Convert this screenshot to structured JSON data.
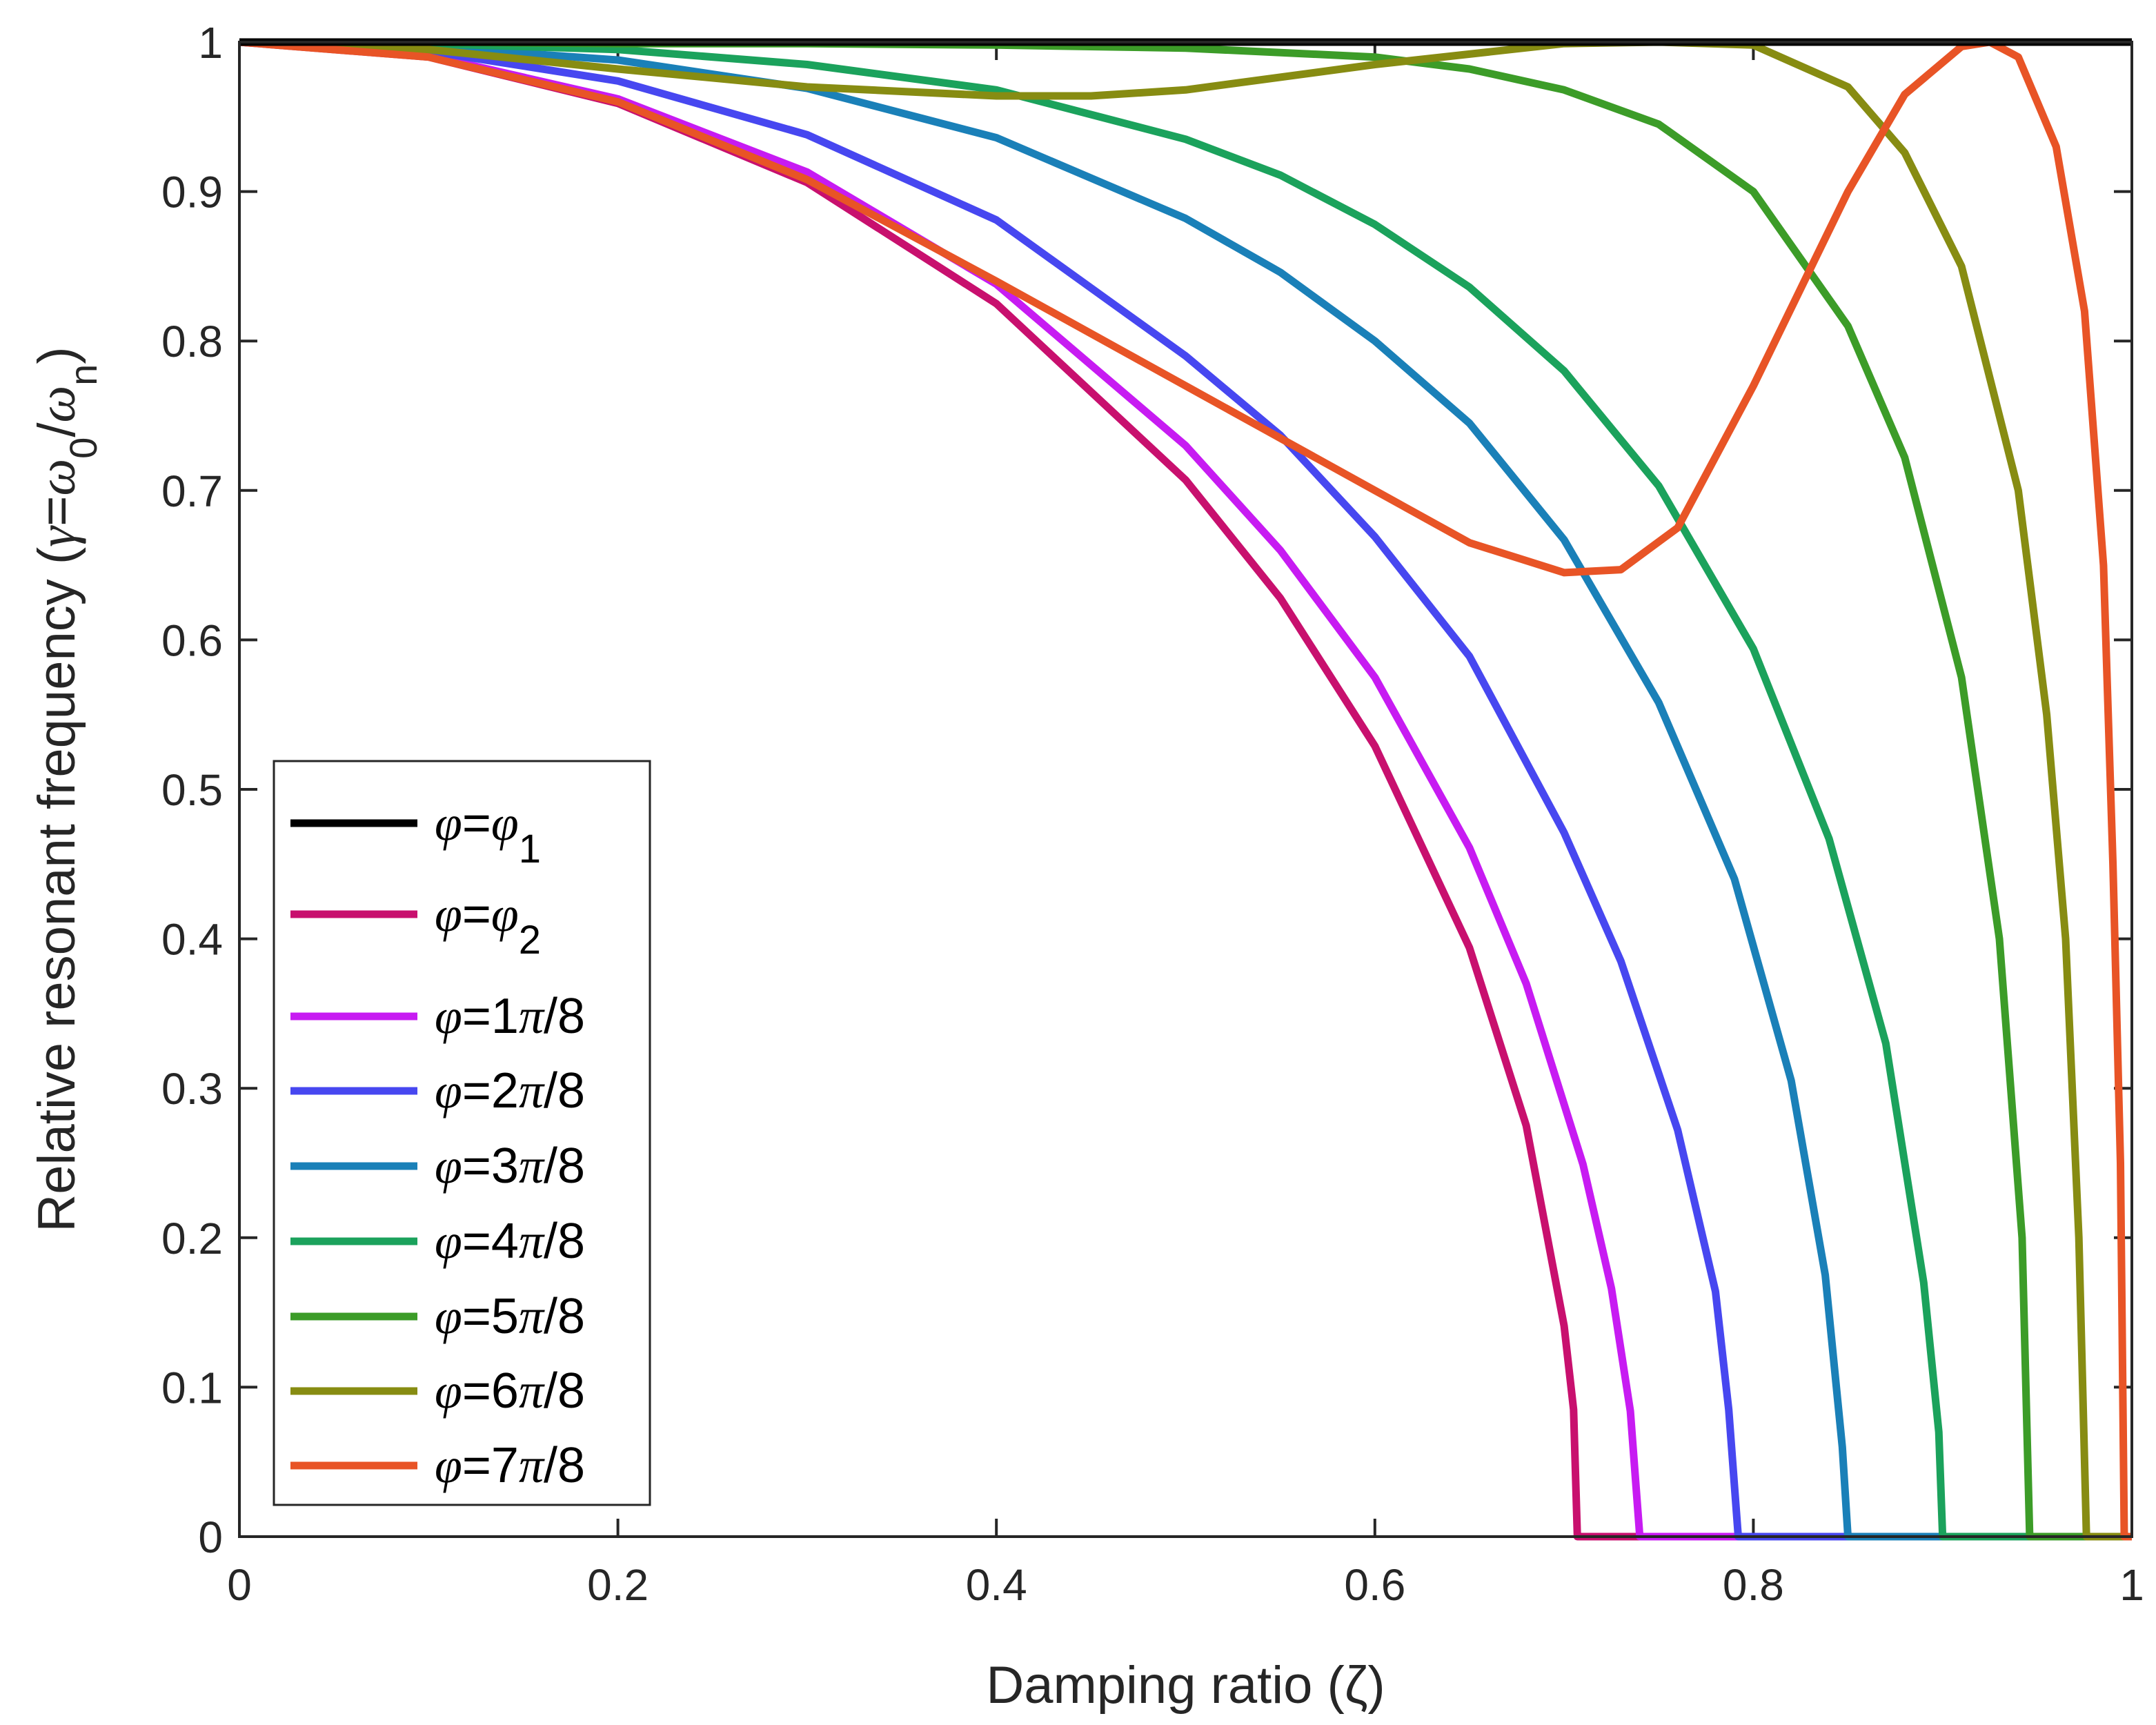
{
  "chart_data": {
    "type": "line",
    "title": "",
    "xlabel": "Damping ratio (ζ)",
    "ylabel_parts": {
      "main": "Relative resonant frequency (",
      "gamma": "γ",
      "eq": "=",
      "omega1": "ω",
      "sub1": "0",
      "slash": "/",
      "omega2": "ω",
      "sub2": "n",
      "close": ")"
    },
    "xlim": [
      0,
      1
    ],
    "ylim": [
      0,
      1
    ],
    "xticks": [
      "0",
      "0.2",
      "0.4",
      "0.6",
      "0.8",
      "1"
    ],
    "yticks": [
      "0",
      "0.1",
      "0.2",
      "0.3",
      "0.4",
      "0.5",
      "0.6",
      "0.7",
      "0.8",
      "0.9",
      "1"
    ],
    "legend_position": "lower-left",
    "series": [
      {
        "name": "φ=φ1",
        "label_main": "φ",
        "label_eq": "=",
        "label_rest": "φ",
        "label_sub": "1",
        "color": "#000000",
        "x": [
          0,
          1
        ],
        "y": [
          1,
          1
        ]
      },
      {
        "name": "φ=φ2",
        "label_main": "φ",
        "label_eq": "=",
        "label_rest": "φ",
        "label_sub": "2",
        "color": "#c8106e",
        "x": [
          0,
          0.1,
          0.2,
          0.3,
          0.4,
          0.5,
          0.55,
          0.6,
          0.65,
          0.68,
          0.7,
          0.705,
          0.707,
          0.71,
          1
        ],
        "y": [
          1,
          0.99,
          0.959,
          0.906,
          0.825,
          0.707,
          0.628,
          0.529,
          0.394,
          0.275,
          0.141,
          0.085,
          0.0,
          0.0,
          0.0
        ]
      },
      {
        "name": "φ=1π/8",
        "label_main": "φ",
        "label_eq": "=",
        "label_rest": "1π/8",
        "label_sub": "",
        "color": "#c71bf2",
        "x": [
          0,
          0.1,
          0.2,
          0.3,
          0.4,
          0.5,
          0.55,
          0.6,
          0.65,
          0.68,
          0.71,
          0.725,
          0.735,
          0.74,
          1
        ],
        "y": [
          1,
          0.991,
          0.962,
          0.913,
          0.838,
          0.73,
          0.66,
          0.575,
          0.461,
          0.37,
          0.249,
          0.166,
          0.084,
          0.0,
          0.0
        ]
      },
      {
        "name": "φ=2π/8",
        "label_main": "φ",
        "label_eq": "=",
        "label_rest": "2π/8",
        "label_sub": "",
        "color": "#4747f0",
        "x": [
          0,
          0.1,
          0.2,
          0.3,
          0.4,
          0.5,
          0.55,
          0.6,
          0.65,
          0.7,
          0.73,
          0.76,
          0.78,
          0.787,
          0.792,
          1
        ],
        "y": [
          1,
          0.994,
          0.974,
          0.938,
          0.881,
          0.79,
          0.737,
          0.669,
          0.589,
          0.471,
          0.385,
          0.272,
          0.164,
          0.085,
          0.0,
          0.0
        ]
      },
      {
        "name": "φ=3π/8",
        "label_main": "φ",
        "label_eq": "=",
        "label_rest": "3π/8",
        "label_sub": "",
        "color": "#1a80b8",
        "x": [
          0,
          0.1,
          0.2,
          0.3,
          0.4,
          0.5,
          0.55,
          0.6,
          0.65,
          0.7,
          0.75,
          0.79,
          0.82,
          0.838,
          0.847,
          0.85,
          1
        ],
        "y": [
          1,
          0.997,
          0.988,
          0.969,
          0.936,
          0.882,
          0.846,
          0.8,
          0.745,
          0.667,
          0.558,
          0.44,
          0.305,
          0.175,
          0.06,
          0.0,
          0.0
        ]
      },
      {
        "name": "φ=4π/8",
        "label_main": "φ",
        "label_eq": "=",
        "label_rest": "4π/8",
        "label_sub": "",
        "color": "#1ba25c",
        "x": [
          0,
          0.1,
          0.2,
          0.3,
          0.4,
          0.5,
          0.55,
          0.6,
          0.65,
          0.7,
          0.75,
          0.8,
          0.84,
          0.87,
          0.89,
          0.898,
          0.9,
          1
        ],
        "y": [
          1,
          0.999,
          0.995,
          0.985,
          0.968,
          0.935,
          0.911,
          0.878,
          0.836,
          0.78,
          0.703,
          0.594,
          0.467,
          0.33,
          0.17,
          0.07,
          0.0,
          0.0
        ]
      },
      {
        "name": "φ=5π/8",
        "label_main": "φ",
        "label_eq": "=",
        "label_rest": "5π/8",
        "label_sub": "",
        "color": "#3c9c28",
        "x": [
          0,
          0.1,
          0.2,
          0.3,
          0.4,
          0.5,
          0.6,
          0.65,
          0.7,
          0.75,
          0.8,
          0.85,
          0.88,
          0.91,
          0.93,
          0.942,
          0.946,
          1
        ],
        "y": [
          1,
          1.0,
          0.999,
          0.999,
          0.998,
          0.996,
          0.99,
          0.982,
          0.968,
          0.945,
          0.9,
          0.81,
          0.722,
          0.575,
          0.4,
          0.2,
          0.0,
          0.0
        ]
      },
      {
        "name": "φ=6π/8",
        "label_main": "φ",
        "label_eq": "=",
        "label_rest": "6π/8",
        "label_sub": "",
        "color": "#878c12",
        "x": [
          0,
          0.1,
          0.2,
          0.3,
          0.4,
          0.45,
          0.5,
          0.6,
          0.7,
          0.75,
          0.8,
          0.85,
          0.88,
          0.91,
          0.94,
          0.955,
          0.965,
          0.972,
          0.976,
          1
        ],
        "y": [
          1,
          0.995,
          0.982,
          0.97,
          0.964,
          0.964,
          0.968,
          0.985,
          0.999,
          1.0,
          0.998,
          0.97,
          0.926,
          0.85,
          0.7,
          0.55,
          0.4,
          0.2,
          0.0,
          0.0
        ]
      },
      {
        "name": "φ=7π/8",
        "label_main": "φ",
        "label_eq": "=",
        "label_rest": "7π/8",
        "label_sub": "",
        "color": "#e85426",
        "x": [
          0,
          0.1,
          0.2,
          0.3,
          0.4,
          0.5,
          0.55,
          0.6,
          0.65,
          0.7,
          0.73,
          0.76,
          0.8,
          0.85,
          0.88,
          0.91,
          0.925,
          0.94,
          0.96,
          0.975,
          0.985,
          0.99,
          0.994,
          0.996,
          1
        ],
        "y": [
          1,
          0.99,
          0.96,
          0.908,
          0.84,
          0.77,
          0.735,
          0.7,
          0.665,
          0.645,
          0.647,
          0.675,
          0.77,
          0.9,
          0.965,
          0.997,
          1.0,
          0.99,
          0.93,
          0.82,
          0.65,
          0.45,
          0.25,
          0.0,
          0.0
        ]
      }
    ]
  }
}
